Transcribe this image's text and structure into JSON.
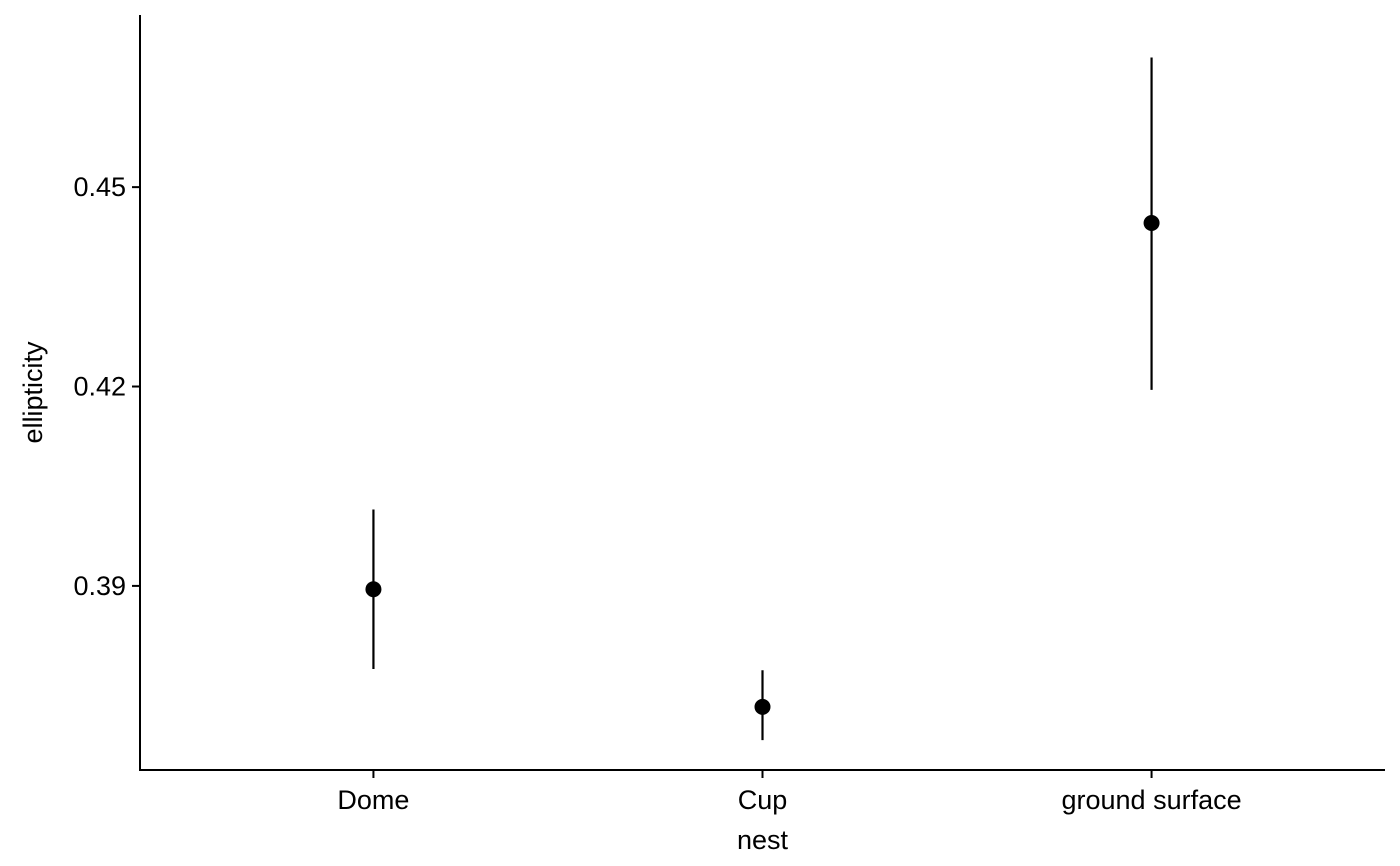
{
  "chart_data": {
    "type": "scatter",
    "title": "",
    "xlabel": "nest",
    "ylabel": "ellipticity",
    "categories": [
      "Dome",
      "Cup",
      "ground surface"
    ],
    "series": [
      {
        "values": [
          0.3895,
          0.3718,
          0.4446
        ],
        "lower": [
          0.3775,
          0.3668,
          0.4195
        ],
        "upper": [
          0.4015,
          0.3773,
          0.4695
        ]
      }
    ],
    "yticks": [
      0.39,
      0.42,
      0.45
    ],
    "ytick_labels": [
      "0.39",
      "0.42",
      "0.45"
    ],
    "ylim": [
      0.3623,
      0.4759
    ],
    "grid": false,
    "legend": "none",
    "colors": {
      "point": "#000000",
      "line": "#000000"
    }
  }
}
